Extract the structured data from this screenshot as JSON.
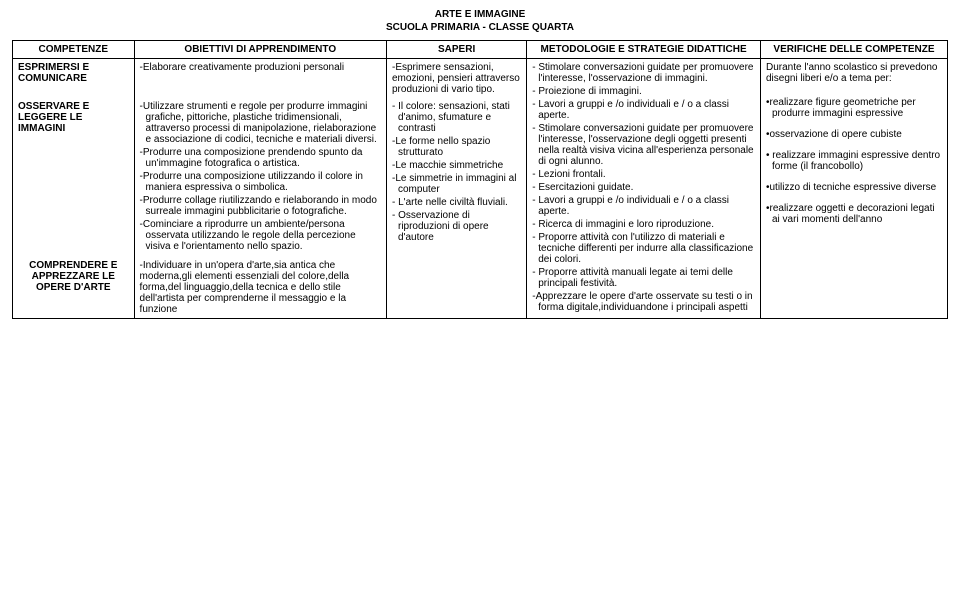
{
  "title": {
    "line1": "ARTE E IMMAGINE",
    "line2": "SCUOLA PRIMARIA - CLASSE QUARTA"
  },
  "headers": {
    "competenze": "COMPETENZE",
    "obiettivi": "OBIETTIVI DI APPRENDIMENTO",
    "saperi": "SAPERI",
    "metodologie": "METODOLOGIE E STRATEGIE DIDATTICHE",
    "verifiche": "VERIFICHE DELLE COMPETENZE"
  },
  "rows": {
    "r1": {
      "competenza": "ESPRIMERSI E COMUNICARE",
      "obiettivi": "-Elaborare creativamente produzioni personali",
      "saperi": "-Esprimere sensazioni, emozioni, pensieri attraverso produzioni di vario tipo."
    },
    "r2": {
      "competenza": "OSSERVARE E LEGGERE LE IMMAGINI",
      "obiettivi": [
        "-Utilizzare strumenti e regole per produrre immagini grafiche, pittoriche, plastiche tridimensionali, attraverso processi di manipolazione, rielaborazione e associazione di codici, tecniche e materiali diversi.",
        "-Produrre una composizione prendendo spunto da un'immagine fotografica o artistica.",
        "-Produrre una composizione utilizzando il colore in maniera espressiva o simbolica.",
        "-Produrre collage riutilizzando e rielaborando in modo surreale immagini pubblicitarie o fotografiche.",
        "-Cominciare a riprodurre un ambiente/persona osservata utilizzando le regole della percezione visiva e l'orientamento nello spazio."
      ],
      "saperi": [
        "- Il colore: sensazioni, stati d'animo, sfumature e contrasti",
        "-Le forme nello spazio strutturato",
        "-Le macchie simmetriche",
        "-Le simmetrie in immagini al computer",
        "- L'arte nelle civiltà fluviali.",
        "- Osservazione di riproduzioni di opere d'autore"
      ]
    },
    "r3": {
      "competenza": "COMPRENDERE E APPREZZARE LE OPERE D'ARTE",
      "obiettivi": "-Individuare in un'opera d'arte,sia antica che moderna,gli elementi essenziali del colore,della forma,del linguaggio,della tecnica e dello stile dell'artista per comprenderne il messaggio e la funzione"
    }
  },
  "metodologie": [
    "- Stimolare conversazioni guidate per promuovere l'interesse, l'osservazione di immagini.",
    "- Proiezione di immagini.",
    "- Lavori a gruppi e /o individuali e / o a classi aperte.",
    "- Stimolare conversazioni guidate per promuovere l'interesse, l'osservazione degli oggetti presenti nella realtà visiva vicina all'esperienza personale di ogni alunno.",
    "- Lezioni frontali.",
    "- Esercitazioni guidate.",
    "- Lavori a gruppi e /o individuali e / o a classi aperte.",
    "- Ricerca di immagini e loro riproduzione.",
    "- Proporre attività con l'utilizzo di materiali e tecniche differenti per indurre alla classificazione dei colori.",
    "- Proporre attività manuali legate ai temi delle principali festività.",
    "-Apprezzare le opere d'arte osservate su testi o in forma digitale,individuandone i principali aspetti"
  ],
  "verifiche": {
    "intro": "Durante l'anno scolastico si prevedono disegni liberi e/o a tema per:",
    "items": [
      "•realizzare figure geometriche per produrre immagini espressive",
      "•osservazione di opere cubiste",
      "• realizzare immagini espressive dentro forme (il francobollo)",
      "•utilizzo di tecniche espressive diverse",
      "•realizzare oggetti e decorazioni legati ai vari momenti dell'anno"
    ]
  }
}
